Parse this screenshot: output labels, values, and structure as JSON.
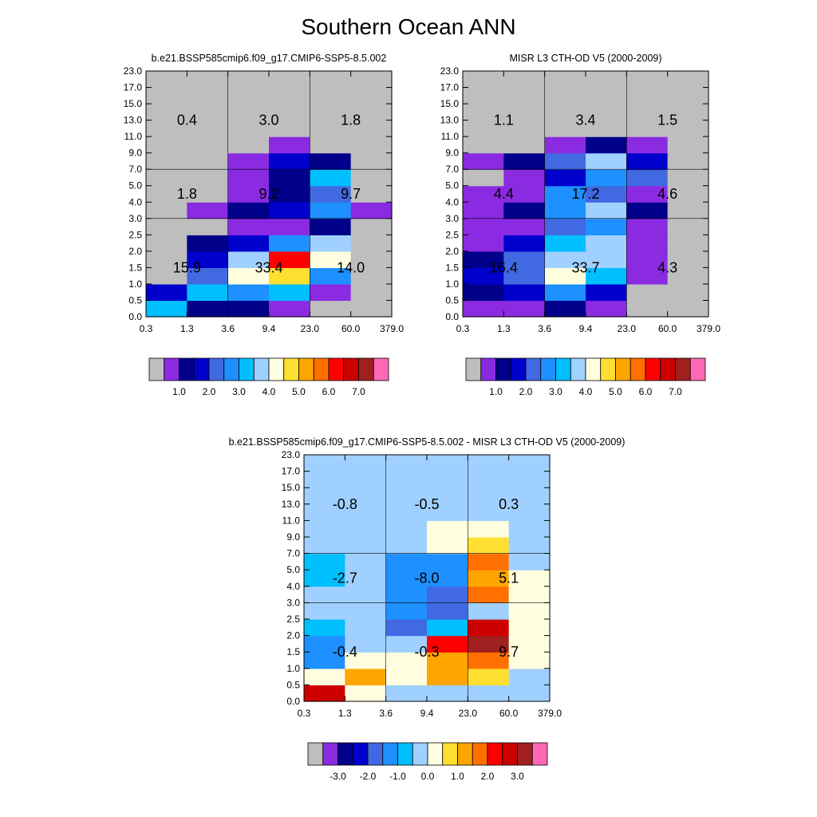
{
  "title": "Southern Ocean ANN",
  "colors": {
    "abs_palette": [
      "#bebebe",
      "#8a2be2",
      "#00008b",
      "#0000cd",
      "#4169e1",
      "#1e90ff",
      "#00bfff",
      "#a0d0ff",
      "#ffffe0",
      "#ffe030",
      "#ffa500",
      "#ff7000",
      "#ff0000",
      "#cd0000",
      "#a02020",
      "#ff69b4"
    ],
    "diff_palette": [
      "#bebebe",
      "#8a2be2",
      "#00008b",
      "#0000cd",
      "#4169e1",
      "#1e90ff",
      "#00bfff",
      "#a0d0ff",
      "#ffffe0",
      "#ffe030",
      "#ffa500",
      "#ff7000",
      "#ff0000",
      "#cd0000",
      "#a02020",
      "#ff69b4"
    ]
  },
  "chart_data": [
    {
      "id": "model",
      "type": "heatmap",
      "title": "b.e21.BSSP585cmip6.f09_g17.CMIP6-SSP5-8.5.002",
      "x_ticks": [
        "0.3",
        "1.3",
        "3.6",
        "9.4",
        "23.0",
        "60.0",
        "379.0"
      ],
      "y_ticks": [
        "0.0",
        "0.5",
        "1.0",
        "1.5",
        "2.0",
        "2.5",
        "3.0",
        "4.0",
        "5.0",
        "7.0",
        "9.0",
        "11.0",
        "13.0",
        "15.0",
        "17.0",
        "23.0"
      ],
      "cells": [
        [
          6,
          2,
          2,
          1,
          0,
          0
        ],
        [
          3,
          6,
          5,
          6,
          1,
          0
        ],
        [
          0,
          4,
          8,
          9,
          5,
          0
        ],
        [
          0,
          3,
          7,
          12,
          8,
          0
        ],
        [
          0,
          2,
          3,
          5,
          7,
          0
        ],
        [
          0,
          0,
          1,
          1,
          2,
          0
        ],
        [
          0,
          1,
          2,
          3,
          5,
          1
        ],
        [
          0,
          0,
          1,
          2,
          4,
          0
        ],
        [
          0,
          0,
          1,
          2,
          6,
          0
        ],
        [
          0,
          0,
          1,
          3,
          2,
          0
        ],
        [
          0,
          0,
          0,
          1,
          0,
          0
        ],
        [
          0,
          0,
          0,
          0,
          0,
          0
        ],
        [
          0,
          0,
          0,
          0,
          0,
          0
        ],
        [
          0,
          0,
          0,
          0,
          0,
          0
        ],
        [
          0,
          0,
          0,
          0,
          0,
          0
        ]
      ],
      "group_totals": [
        {
          "x": 0,
          "y": 0,
          "label": "15.9"
        },
        {
          "x": 1,
          "y": 0,
          "label": "33.4"
        },
        {
          "x": 2,
          "y": 0,
          "label": "14.0"
        },
        {
          "x": 0,
          "y": 1,
          "label": "1.8"
        },
        {
          "x": 1,
          "y": 1,
          "label": "9.2"
        },
        {
          "x": 2,
          "y": 1,
          "label": "9.7"
        },
        {
          "x": 0,
          "y": 2,
          "label": "0.4"
        },
        {
          "x": 1,
          "y": 2,
          "label": "3.0"
        },
        {
          "x": 2,
          "y": 2,
          "label": "1.8"
        }
      ],
      "colorbar_labels": [
        "1.0",
        "2.0",
        "3.0",
        "4.0",
        "5.0",
        "6.0",
        "7.0"
      ],
      "palette": "abs_palette"
    },
    {
      "id": "obs",
      "type": "heatmap",
      "title": "MISR L3 CTH-OD V5 (2000-2009)",
      "x_ticks": [
        "0.3",
        "1.3",
        "3.6",
        "9.4",
        "23.0",
        "60.0",
        "379.0"
      ],
      "y_ticks": [
        "0.0",
        "0.5",
        "1.0",
        "1.5",
        "2.0",
        "2.5",
        "3.0",
        "4.0",
        "5.0",
        "7.0",
        "9.0",
        "11.0",
        "13.0",
        "15.0",
        "17.0",
        "23.0"
      ],
      "cells": [
        [
          1,
          1,
          2,
          1,
          0,
          0
        ],
        [
          2,
          3,
          5,
          3,
          0,
          0
        ],
        [
          3,
          4,
          8,
          6,
          1,
          0
        ],
        [
          2,
          4,
          7,
          7,
          1,
          0
        ],
        [
          1,
          3,
          6,
          7,
          1,
          0
        ],
        [
          1,
          1,
          4,
          5,
          1,
          0
        ],
        [
          1,
          2,
          5,
          7,
          2,
          0
        ],
        [
          1,
          1,
          5,
          4,
          1,
          0
        ],
        [
          0,
          1,
          3,
          5,
          4,
          0
        ],
        [
          1,
          2,
          4,
          7,
          3,
          0
        ],
        [
          0,
          0,
          1,
          2,
          1,
          0
        ],
        [
          0,
          0,
          0,
          0,
          0,
          0
        ],
        [
          0,
          0,
          0,
          0,
          0,
          0
        ],
        [
          0,
          0,
          0,
          0,
          0,
          0
        ],
        [
          0,
          0,
          0,
          0,
          0,
          0
        ]
      ],
      "group_totals": [
        {
          "x": 0,
          "y": 0,
          "label": "16.4"
        },
        {
          "x": 1,
          "y": 0,
          "label": "33.7"
        },
        {
          "x": 2,
          "y": 0,
          "label": "4.3"
        },
        {
          "x": 0,
          "y": 1,
          "label": "4.4"
        },
        {
          "x": 1,
          "y": 1,
          "label": "17.2"
        },
        {
          "x": 2,
          "y": 1,
          "label": "4.6"
        },
        {
          "x": 0,
          "y": 2,
          "label": "1.1"
        },
        {
          "x": 1,
          "y": 2,
          "label": "3.4"
        },
        {
          "x": 2,
          "y": 2,
          "label": "1.5"
        }
      ],
      "colorbar_labels": [
        "1.0",
        "2.0",
        "3.0",
        "4.0",
        "5.0",
        "6.0",
        "7.0"
      ],
      "palette": "abs_palette"
    },
    {
      "id": "diff",
      "type": "heatmap",
      "title": "b.e21.BSSP585cmip6.f09_g17.CMIP6-SSP5-8.5.002 - MISR L3 CTH-OD V5 (2000-2009)",
      "x_ticks": [
        "0.3",
        "1.3",
        "3.6",
        "9.4",
        "23.0",
        "60.0",
        "379.0"
      ],
      "y_ticks": [
        "0.0",
        "0.5",
        "1.0",
        "1.5",
        "2.0",
        "2.5",
        "3.0",
        "4.0",
        "5.0",
        "7.0",
        "9.0",
        "11.0",
        "13.0",
        "15.0",
        "17.0",
        "23.0"
      ],
      "cells": [
        [
          13,
          8,
          7,
          7,
          7,
          7
        ],
        [
          8,
          10,
          8,
          10,
          9,
          7
        ],
        [
          5,
          8,
          8,
          10,
          11,
          8
        ],
        [
          5,
          7,
          7,
          12,
          14,
          8
        ],
        [
          6,
          7,
          4,
          6,
          13,
          8
        ],
        [
          7,
          7,
          5,
          4,
          7,
          8
        ],
        [
          7,
          7,
          5,
          4,
          11,
          8
        ],
        [
          6,
          7,
          5,
          5,
          10,
          8
        ],
        [
          6,
          7,
          5,
          5,
          11,
          7
        ],
        [
          7,
          7,
          7,
          8,
          9,
          7
        ],
        [
          7,
          7,
          7,
          8,
          8,
          7
        ],
        [
          7,
          7,
          7,
          7,
          7,
          7
        ],
        [
          7,
          7,
          7,
          7,
          7,
          7
        ],
        [
          7,
          7,
          7,
          7,
          7,
          7
        ],
        [
          7,
          7,
          7,
          7,
          7,
          7
        ]
      ],
      "group_totals": [
        {
          "x": 0,
          "y": 0,
          "label": "-0.4"
        },
        {
          "x": 1,
          "y": 0,
          "label": "-0.3"
        },
        {
          "x": 2,
          "y": 0,
          "label": "9.7"
        },
        {
          "x": 0,
          "y": 1,
          "label": "-2.7"
        },
        {
          "x": 1,
          "y": 1,
          "label": "-8.0"
        },
        {
          "x": 2,
          "y": 1,
          "label": "5.1"
        },
        {
          "x": 0,
          "y": 2,
          "label": "-0.8"
        },
        {
          "x": 1,
          "y": 2,
          "label": "-0.5"
        },
        {
          "x": 2,
          "y": 2,
          "label": "0.3"
        }
      ],
      "colorbar_labels": [
        "-3.0",
        "-2.0",
        "-1.0",
        "0.0",
        "1.0",
        "2.0",
        "3.0"
      ],
      "palette": "diff_palette"
    }
  ]
}
